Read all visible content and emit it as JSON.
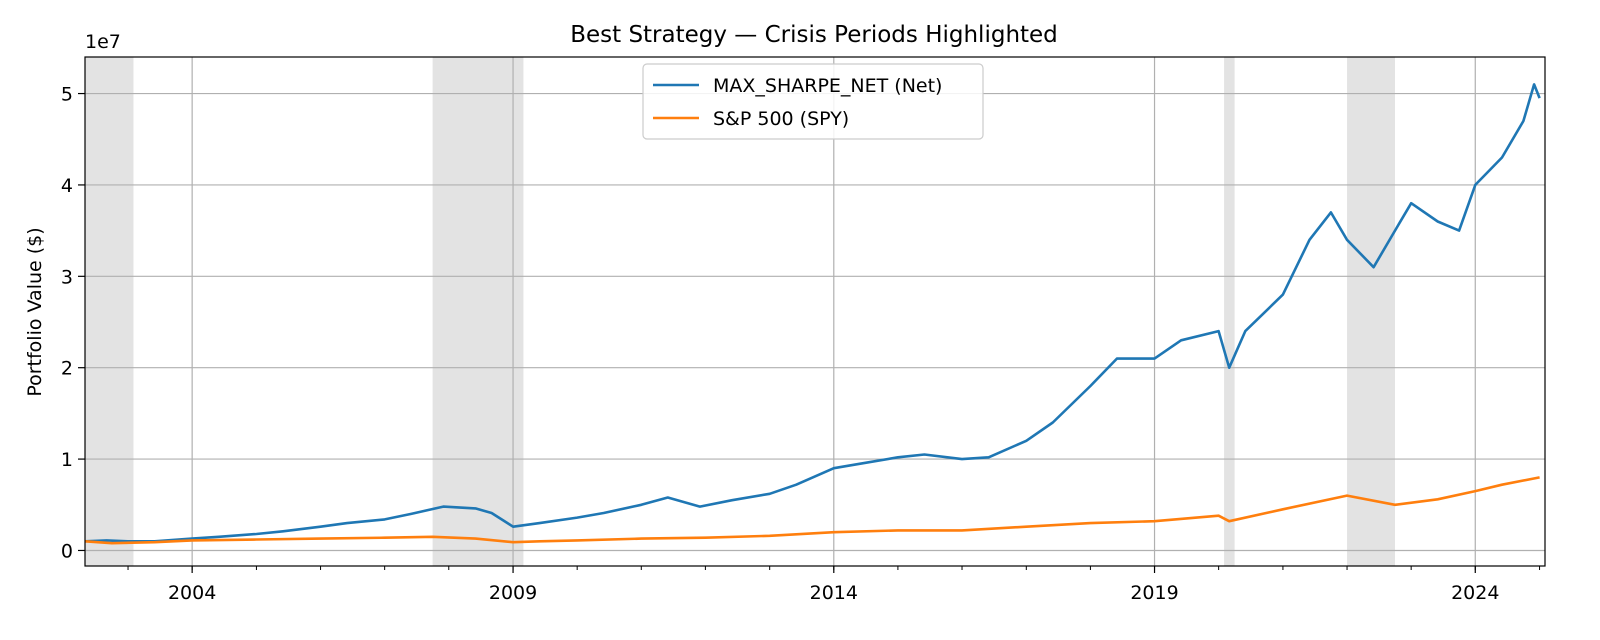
{
  "chart_data": {
    "type": "line",
    "title": "Best Strategy — Crisis Periods Highlighted",
    "xlabel": "",
    "ylabel": "Portfolio Value ($)",
    "y_offset_text": "1e7",
    "y_scale_factor": 10000000,
    "xlim": [
      "2002-05-01",
      "2025-02-01"
    ],
    "ylim": [
      -0.17,
      5.4
    ],
    "x_ticks": [
      {
        "date": "2004-01-01",
        "label": "2004"
      },
      {
        "date": "2009-01-01",
        "label": "2009"
      },
      {
        "date": "2014-01-01",
        "label": "2014"
      },
      {
        "date": "2019-01-01",
        "label": "2019"
      },
      {
        "date": "2024-01-01",
        "label": "2024"
      }
    ],
    "y_ticks": [
      {
        "value": 0,
        "label": "0"
      },
      {
        "value": 1,
        "label": "1"
      },
      {
        "value": 2,
        "label": "2"
      },
      {
        "value": 3,
        "label": "3"
      },
      {
        "value": 4,
        "label": "4"
      },
      {
        "value": 5,
        "label": "5"
      }
    ],
    "grid": true,
    "legend_position": "upper-center",
    "crisis_periods": [
      {
        "start": "2002-05-01",
        "end": "2003-02-01"
      },
      {
        "start": "2007-10-01",
        "end": "2009-03-01"
      },
      {
        "start": "2020-02-01",
        "end": "2020-04-01"
      },
      {
        "start": "2022-01-01",
        "end": "2022-10-01"
      }
    ],
    "series": [
      {
        "name": "MAX_SHARPE_NET (Net)",
        "color": "#1f77b4",
        "points": [
          [
            "2002-05-01",
            0.1
          ],
          [
            "2002-09-01",
            0.11
          ],
          [
            "2003-01-01",
            0.1
          ],
          [
            "2003-06-01",
            0.1
          ],
          [
            "2004-01-01",
            0.13
          ],
          [
            "2004-06-01",
            0.15
          ],
          [
            "2005-01-01",
            0.18
          ],
          [
            "2005-06-01",
            0.21
          ],
          [
            "2006-01-01",
            0.26
          ],
          [
            "2006-06-01",
            0.3
          ],
          [
            "2007-01-01",
            0.34
          ],
          [
            "2007-06-01",
            0.4
          ],
          [
            "2007-12-01",
            0.48
          ],
          [
            "2008-06-01",
            0.46
          ],
          [
            "2008-09-01",
            0.41
          ],
          [
            "2009-01-01",
            0.26
          ],
          [
            "2009-06-01",
            0.3
          ],
          [
            "2010-01-01",
            0.36
          ],
          [
            "2010-06-01",
            0.41
          ],
          [
            "2011-01-01",
            0.5
          ],
          [
            "2011-06-01",
            0.58
          ],
          [
            "2011-12-01",
            0.48
          ],
          [
            "2012-06-01",
            0.55
          ],
          [
            "2013-01-01",
            0.62
          ],
          [
            "2013-06-01",
            0.72
          ],
          [
            "2014-01-01",
            0.9
          ],
          [
            "2014-06-01",
            0.95
          ],
          [
            "2015-01-01",
            1.02
          ],
          [
            "2015-06-01",
            1.05
          ],
          [
            "2016-01-01",
            1.0
          ],
          [
            "2016-06-01",
            1.02
          ],
          [
            "2017-01-01",
            1.2
          ],
          [
            "2017-06-01",
            1.4
          ],
          [
            "2018-01-01",
            1.8
          ],
          [
            "2018-06-01",
            2.1
          ],
          [
            "2019-01-01",
            2.1
          ],
          [
            "2019-06-01",
            2.3
          ],
          [
            "2020-01-01",
            2.4
          ],
          [
            "2020-03-01",
            2.0
          ],
          [
            "2020-06-01",
            2.4
          ],
          [
            "2021-01-01",
            2.8
          ],
          [
            "2021-06-01",
            3.4
          ],
          [
            "2021-10-01",
            3.7
          ],
          [
            "2022-01-01",
            3.4
          ],
          [
            "2022-06-01",
            3.1
          ],
          [
            "2022-10-01",
            3.5
          ],
          [
            "2023-01-01",
            3.8
          ],
          [
            "2023-06-01",
            3.6
          ],
          [
            "2023-10-01",
            3.5
          ],
          [
            "2024-01-01",
            4.0
          ],
          [
            "2024-06-01",
            4.3
          ],
          [
            "2024-10-01",
            4.7
          ],
          [
            "2024-12-01",
            5.1
          ],
          [
            "2025-01-01",
            4.95
          ]
        ]
      },
      {
        "name": "S&P 500 (SPY)",
        "color": "#ff7f0e",
        "points": [
          [
            "2002-05-01",
            0.1
          ],
          [
            "2002-10-01",
            0.08
          ],
          [
            "2003-06-01",
            0.09
          ],
          [
            "2004-01-01",
            0.11
          ],
          [
            "2005-01-01",
            0.12
          ],
          [
            "2006-01-01",
            0.13
          ],
          [
            "2007-01-01",
            0.14
          ],
          [
            "2007-10-01",
            0.15
          ],
          [
            "2008-06-01",
            0.13
          ],
          [
            "2009-01-01",
            0.09
          ],
          [
            "2009-06-01",
            0.1
          ],
          [
            "2010-01-01",
            0.11
          ],
          [
            "2011-01-01",
            0.13
          ],
          [
            "2012-01-01",
            0.14
          ],
          [
            "2013-01-01",
            0.16
          ],
          [
            "2014-01-01",
            0.2
          ],
          [
            "2015-01-01",
            0.22
          ],
          [
            "2016-01-01",
            0.22
          ],
          [
            "2017-01-01",
            0.26
          ],
          [
            "2018-01-01",
            0.3
          ],
          [
            "2019-01-01",
            0.32
          ],
          [
            "2020-01-01",
            0.38
          ],
          [
            "2020-03-01",
            0.32
          ],
          [
            "2021-01-01",
            0.45
          ],
          [
            "2022-01-01",
            0.6
          ],
          [
            "2022-10-01",
            0.5
          ],
          [
            "2023-06-01",
            0.56
          ],
          [
            "2024-01-01",
            0.65
          ],
          [
            "2024-06-01",
            0.72
          ],
          [
            "2025-01-01",
            0.8
          ]
        ]
      }
    ]
  }
}
